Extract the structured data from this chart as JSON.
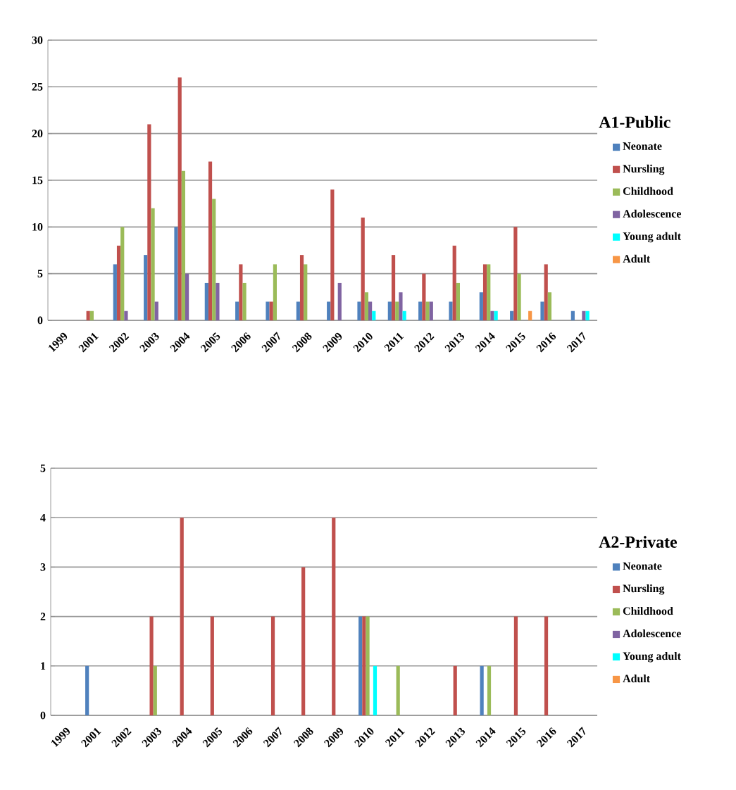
{
  "chart_data": [
    {
      "type": "bar",
      "legend_title": "A1-Public",
      "legend": "right",
      "grid": "y",
      "ylim": [
        0,
        30
      ],
      "yticks": [
        0,
        5,
        10,
        15,
        20,
        25,
        30
      ],
      "categories": [
        "1999",
        "2001",
        "2002",
        "2003",
        "2004",
        "2005",
        "2006",
        "2007",
        "2008",
        "2009",
        "2010",
        "2011",
        "2012",
        "2013",
        "2014",
        "2015",
        "2016",
        "2017"
      ],
      "series": [
        {
          "name": "Neonate",
          "color": "#4f81bd",
          "values": [
            0,
            0,
            6,
            7,
            10,
            4,
            2,
            2,
            2,
            2,
            2,
            2,
            2,
            2,
            3,
            1,
            2,
            1
          ]
        },
        {
          "name": "Nursling",
          "color": "#c0504d",
          "values": [
            0,
            1,
            8,
            21,
            26,
            17,
            6,
            2,
            7,
            14,
            11,
            7,
            5,
            8,
            6,
            10,
            6,
            0
          ]
        },
        {
          "name": "Childhood",
          "color": "#9bbb59",
          "values": [
            0,
            1,
            10,
            12,
            16,
            13,
            4,
            6,
            6,
            0,
            3,
            2,
            2,
            4,
            6,
            5,
            3,
            0
          ]
        },
        {
          "name": "Adolescence",
          "color": "#8064a2",
          "values": [
            0,
            0,
            1,
            2,
            5,
            4,
            0,
            0,
            0,
            4,
            2,
            3,
            2,
            0,
            1,
            0,
            0,
            1
          ]
        },
        {
          "name": "Young adult",
          "color": "#00ffff",
          "values": [
            0,
            0,
            0,
            0,
            0,
            0,
            0,
            0,
            0,
            0,
            1,
            1,
            0,
            0,
            1,
            0,
            0,
            1
          ]
        },
        {
          "name": "Adult",
          "color": "#f79646",
          "values": [
            0,
            0,
            0,
            0,
            0,
            0,
            0,
            0,
            0,
            0,
            0,
            0,
            0,
            0,
            0,
            1,
            0,
            0
          ]
        }
      ]
    },
    {
      "type": "bar",
      "legend_title": "A2-Private",
      "legend": "right",
      "grid": "y",
      "ylim": [
        0,
        5
      ],
      "yticks": [
        0,
        1,
        2,
        3,
        4,
        5
      ],
      "categories": [
        "1999",
        "2001",
        "2002",
        "2003",
        "2004",
        "2005",
        "2006",
        "2007",
        "2008",
        "2009",
        "2010",
        "2011",
        "2012",
        "2013",
        "2014",
        "2015",
        "2016",
        "2017"
      ],
      "series": [
        {
          "name": "Neonate",
          "color": "#4f81bd",
          "values": [
            0,
            1,
            0,
            0,
            0,
            0,
            0,
            0,
            0,
            0,
            2,
            0,
            0,
            0,
            1,
            0,
            0,
            0
          ]
        },
        {
          "name": "Nursling",
          "color": "#c0504d",
          "values": [
            0,
            0,
            0,
            2,
            4,
            2,
            0,
            2,
            3,
            4,
            2,
            0,
            0,
            1,
            0,
            2,
            2,
            0
          ]
        },
        {
          "name": "Childhood",
          "color": "#9bbb59",
          "values": [
            0,
            0,
            0,
            1,
            0,
            0,
            0,
            0,
            0,
            0,
            2,
            1,
            0,
            0,
            1,
            0,
            0,
            0
          ]
        },
        {
          "name": "Adolescence",
          "color": "#8064a2",
          "values": [
            0,
            0,
            0,
            0,
            0,
            0,
            0,
            0,
            0,
            0,
            0,
            0,
            0,
            0,
            0,
            0,
            0,
            0
          ]
        },
        {
          "name": "Young adult",
          "color": "#00ffff",
          "values": [
            0,
            0,
            0,
            0,
            0,
            0,
            0,
            0,
            0,
            0,
            1,
            0,
            0,
            0,
            0,
            0,
            0,
            0
          ]
        },
        {
          "name": "Adult",
          "color": "#f79646",
          "values": [
            0,
            0,
            0,
            0,
            0,
            0,
            0,
            0,
            0,
            0,
            0,
            0,
            0,
            0,
            0,
            0,
            0,
            0
          ]
        }
      ]
    }
  ]
}
